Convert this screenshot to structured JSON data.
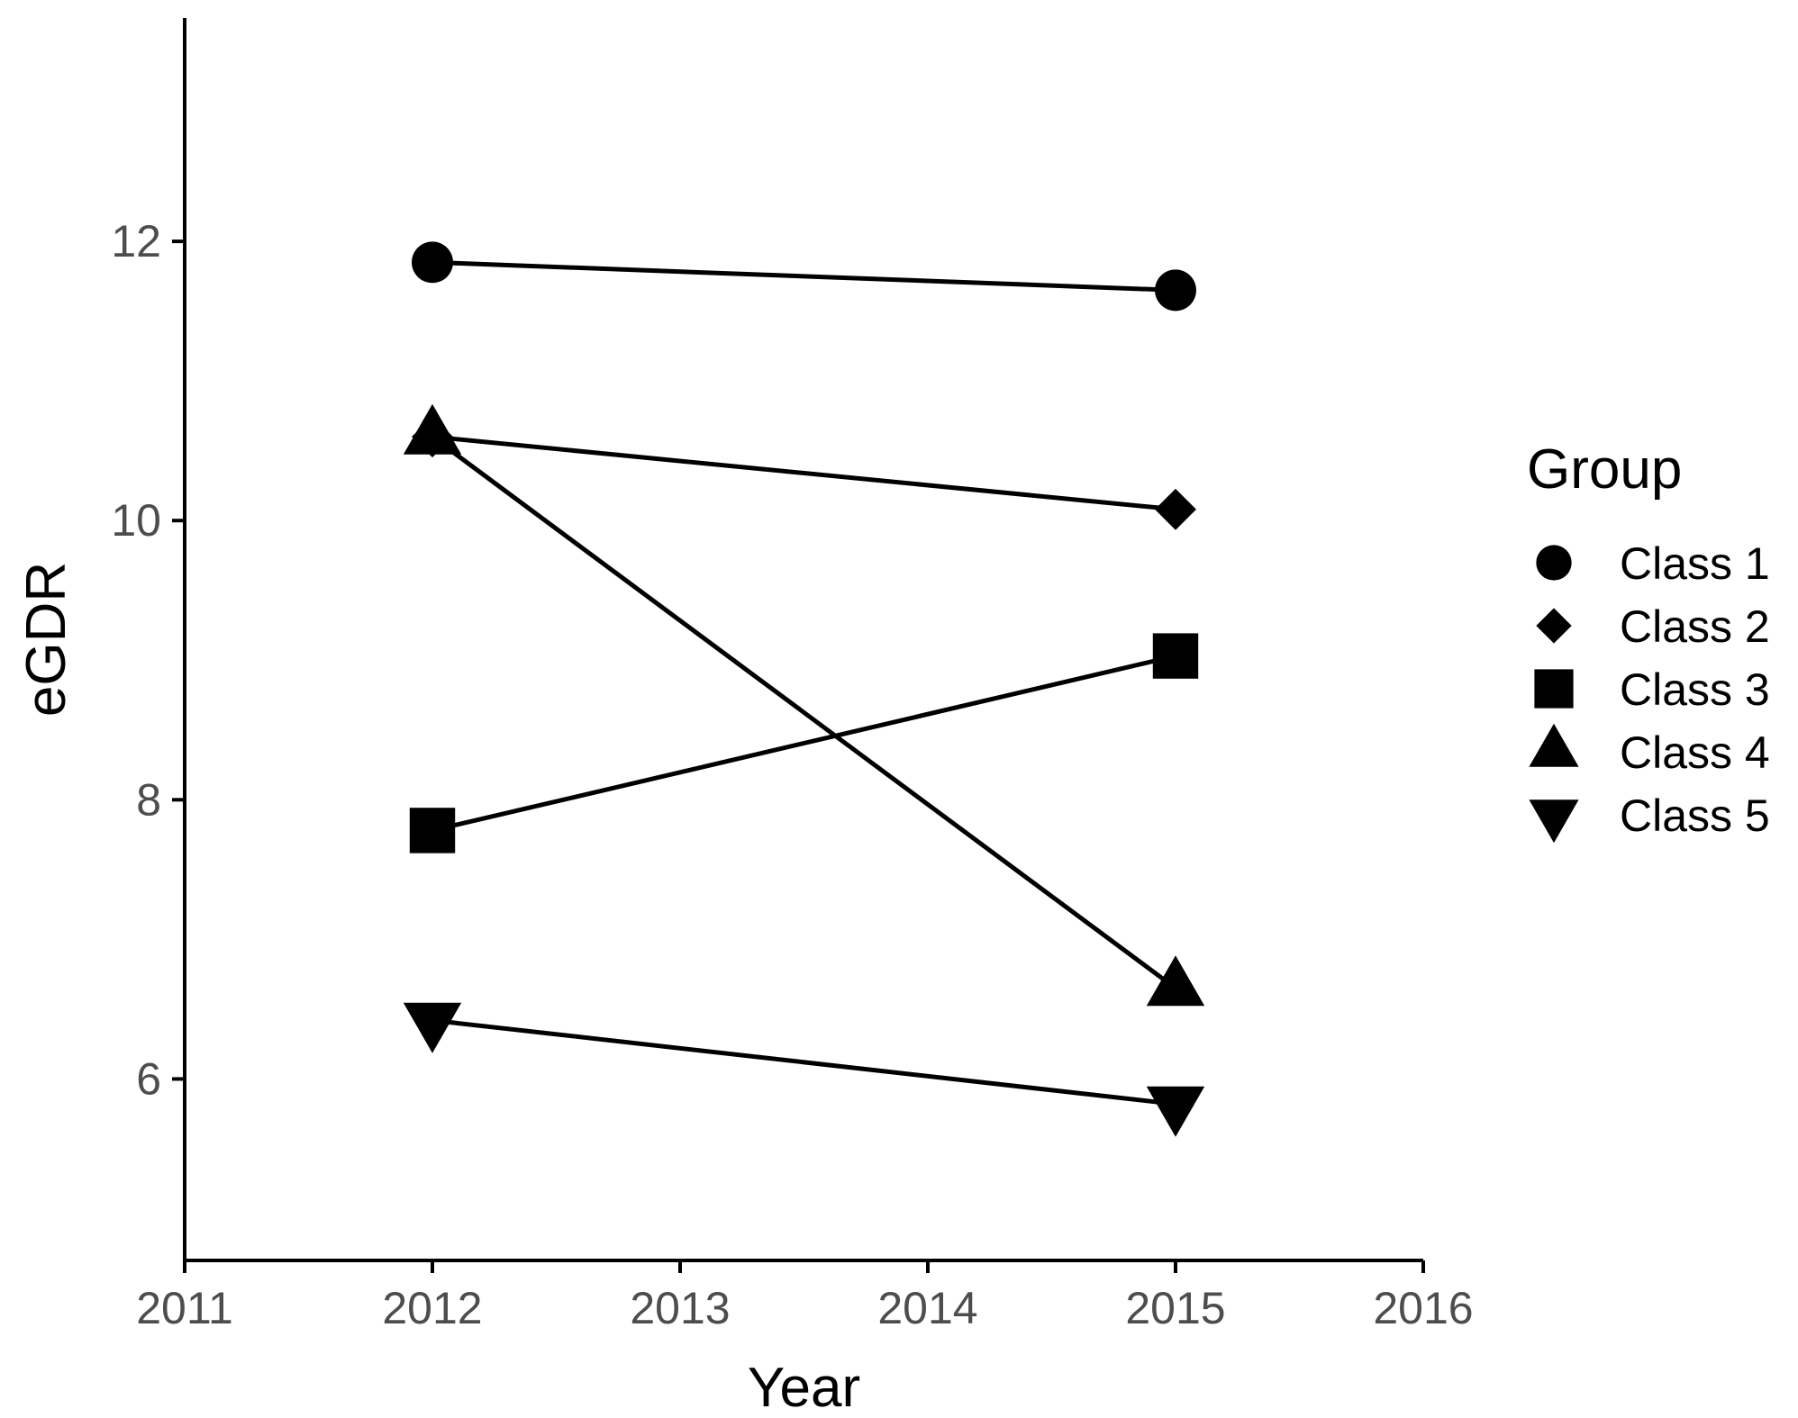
{
  "chart_data": {
    "type": "line",
    "title": "",
    "xlabel": "Year",
    "ylabel": "eGDR",
    "xlim": [
      2011,
      2016
    ],
    "ylim": [
      4.7,
      13.6
    ],
    "x_ticks": [
      2011,
      2012,
      2013,
      2014,
      2015,
      2016
    ],
    "y_ticks": [
      6,
      8,
      10,
      12
    ],
    "x": [
      2012,
      2015
    ],
    "legend": {
      "title": "Group",
      "position": "right"
    },
    "series": [
      {
        "name": "Class 1",
        "shape": "circle",
        "values": [
          11.85,
          11.65
        ]
      },
      {
        "name": "Class 2",
        "shape": "diamond",
        "values": [
          10.6,
          10.08
        ]
      },
      {
        "name": "Class 3",
        "shape": "square",
        "values": [
          7.78,
          9.03
        ]
      },
      {
        "name": "Class 4",
        "shape": "triangle-up",
        "values": [
          10.6,
          6.65
        ]
      },
      {
        "name": "Class 5",
        "shape": "triangle-down",
        "values": [
          6.42,
          5.82
        ]
      }
    ],
    "grid": false,
    "line_color": "#000000",
    "marker_color": "#000000"
  }
}
